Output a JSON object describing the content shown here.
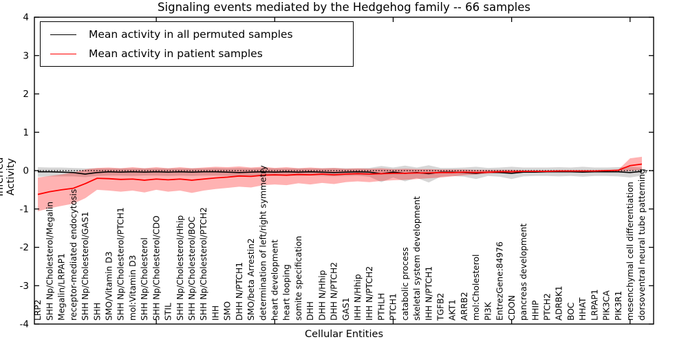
{
  "figure": {
    "title": "Signaling events mediated by the Hedgehog family -- 66 samples",
    "xlabel": "Cellular Entities",
    "ylabel": "Inferred Activity"
  },
  "legend": {
    "items": [
      {
        "label": "Mean activity in all permuted samples",
        "color": "#000000"
      },
      {
        "label": "Mean activity in patient samples",
        "color": "#ff0000"
      }
    ]
  },
  "chart_data": {
    "type": "line",
    "title": "Signaling events mediated by the Hedgehog family -- 66 samples",
    "xlabel": "Cellular Entities",
    "ylabel": "Inferred Activity",
    "ylim": [
      -4,
      4
    ],
    "yticks": [
      -4,
      -3,
      -2,
      -1,
      0,
      1,
      2,
      3,
      4
    ],
    "x_major_tick_indices": [
      10,
      20,
      30,
      40,
      50
    ],
    "grid": false,
    "legend_position": "upper left",
    "zero_line": {
      "style": "dotted",
      "color": "#000000",
      "y": 0
    },
    "categories": [
      "LRP2",
      "SHH Np/Cholesterol/Megalin",
      "Megalin/LRPAP1",
      "receptor-mediated endocytosis",
      "SHH Np/Cholesterol/GAS1",
      "SHH",
      "SMO/Vitamin D3",
      "SHH Np/Cholesterol/PTCH1",
      "mol:Vitamin D3",
      "SHH Np/Cholesterol",
      "SHH Np/Cholesterol/CDO",
      "STIL",
      "SHH Np/Cholesterol/Hhip",
      "SHH Np/Cholesterol/BOC",
      "SHH Np/Cholesterol/PTCH2",
      "IHH",
      "SMO",
      "DHH N/PTCH1",
      "SMO/beta Arrestin2",
      "determination of left/right symmetry",
      "heart development",
      "heart looping",
      "somite specification",
      "DHH",
      "DHH N/Hhip",
      "DHH N/PTCH2",
      "GAS1",
      "IHH N/Hhip",
      "IHH N/PTCH2",
      "PTHLH",
      "PTCH1",
      "catabolic process",
      "skeletal system development",
      "IHH N/PTCH1",
      "TGFB2",
      "AKT1",
      "ARRB2",
      "mol:Cholesterol",
      "PI3K",
      "EntrezGene:84976",
      "CDON",
      "pancreas development",
      "HHIP",
      "PTCH2",
      "ADRBK1",
      "BOC",
      "HHAT",
      "LRPAP1",
      "PIK3CA",
      "PIK3R1",
      "mesenchymal cell differentiation",
      "dorsoventral neural tube patterning"
    ],
    "series": [
      {
        "name": "Mean activity in all permuted samples",
        "color": "#000000",
        "line_width": 1.6,
        "values": [
          -0.03,
          -0.03,
          -0.04,
          -0.05,
          -0.09,
          -0.05,
          -0.03,
          -0.04,
          -0.03,
          -0.04,
          -0.03,
          -0.04,
          -0.03,
          -0.04,
          -0.03,
          -0.03,
          -0.04,
          -0.05,
          -0.04,
          -0.03,
          -0.04,
          -0.03,
          -0.04,
          -0.03,
          -0.04,
          -0.05,
          -0.04,
          -0.03,
          -0.04,
          -0.08,
          -0.04,
          -0.07,
          -0.05,
          -0.08,
          -0.04,
          -0.04,
          -0.05,
          -0.07,
          -0.04,
          -0.05,
          -0.07,
          -0.04,
          -0.04,
          -0.03,
          -0.03,
          -0.03,
          -0.04,
          -0.03,
          -0.03,
          -0.03,
          -0.05,
          -0.02
        ],
        "band": {
          "fill": "rgba(0,0,0,0.16)",
          "upper": [
            0.09,
            0.08,
            0.08,
            0.07,
            0.06,
            0.06,
            0.06,
            0.06,
            0.06,
            0.06,
            0.06,
            0.06,
            0.06,
            0.06,
            0.06,
            0.07,
            0.06,
            0.07,
            0.06,
            0.07,
            0.06,
            0.06,
            0.06,
            0.06,
            0.06,
            0.07,
            0.06,
            0.06,
            0.07,
            0.12,
            0.08,
            0.13,
            0.08,
            0.14,
            0.07,
            0.07,
            0.08,
            0.1,
            0.07,
            0.08,
            0.1,
            0.08,
            0.08,
            0.08,
            0.09,
            0.08,
            0.1,
            0.08,
            0.08,
            0.09,
            0.1,
            0.08
          ],
          "lower": [
            -0.16,
            -0.15,
            -0.15,
            -0.15,
            -0.17,
            -0.14,
            -0.13,
            -0.13,
            -0.14,
            -0.13,
            -0.13,
            -0.14,
            -0.13,
            -0.14,
            -0.13,
            -0.13,
            -0.14,
            -0.15,
            -0.14,
            -0.13,
            -0.14,
            -0.13,
            -0.14,
            -0.13,
            -0.14,
            -0.15,
            -0.14,
            -0.13,
            -0.16,
            -0.3,
            -0.18,
            -0.28,
            -0.19,
            -0.31,
            -0.16,
            -0.14,
            -0.16,
            -0.22,
            -0.14,
            -0.16,
            -0.22,
            -0.15,
            -0.14,
            -0.14,
            -0.15,
            -0.14,
            -0.16,
            -0.14,
            -0.14,
            -0.15,
            -0.18,
            -0.13
          ]
        }
      },
      {
        "name": "Mean activity in patient samples",
        "color": "#ff0000",
        "line_width": 1.8,
        "values": [
          -0.62,
          -0.55,
          -0.5,
          -0.46,
          -0.34,
          -0.2,
          -0.21,
          -0.23,
          -0.22,
          -0.25,
          -0.22,
          -0.24,
          -0.22,
          -0.25,
          -0.22,
          -0.19,
          -0.17,
          -0.14,
          -0.15,
          -0.12,
          -0.11,
          -0.12,
          -0.1,
          -0.11,
          -0.09,
          -0.11,
          -0.09,
          -0.08,
          -0.09,
          -0.08,
          -0.07,
          -0.07,
          -0.06,
          -0.06,
          -0.05,
          -0.05,
          -0.04,
          -0.05,
          -0.04,
          -0.03,
          -0.03,
          -0.02,
          -0.02,
          -0.02,
          -0.01,
          -0.01,
          -0.01,
          -0.01,
          0.0,
          0.01,
          0.13,
          0.17
        ],
        "band": {
          "fill": "rgba(255,0,0,0.30)",
          "upper": [
            -0.18,
            -0.14,
            -0.1,
            -0.05,
            0.03,
            0.07,
            0.08,
            0.06,
            0.09,
            0.06,
            0.09,
            0.06,
            0.09,
            0.06,
            0.08,
            0.1,
            0.09,
            0.11,
            0.08,
            0.1,
            0.07,
            0.09,
            0.06,
            0.08,
            0.06,
            0.07,
            0.05,
            0.06,
            0.05,
            0.06,
            0.04,
            0.05,
            0.04,
            0.04,
            0.03,
            0.03,
            0.03,
            0.02,
            0.02,
            0.02,
            0.02,
            0.01,
            0.01,
            0.01,
            0.01,
            0.01,
            0.01,
            0.01,
            0.02,
            0.02,
            0.32,
            0.36
          ],
          "lower": [
            -1.06,
            -0.98,
            -0.92,
            -0.86,
            -0.72,
            -0.5,
            -0.52,
            -0.55,
            -0.52,
            -0.57,
            -0.5,
            -0.55,
            -0.52,
            -0.58,
            -0.52,
            -0.48,
            -0.45,
            -0.42,
            -0.44,
            -0.38,
            -0.36,
            -0.38,
            -0.33,
            -0.36,
            -0.32,
            -0.35,
            -0.3,
            -0.28,
            -0.3,
            -0.27,
            -0.25,
            -0.24,
            -0.22,
            -0.2,
            -0.18,
            -0.15,
            -0.12,
            -0.1,
            -0.08,
            -0.06,
            -0.05,
            -0.05,
            -0.04,
            -0.04,
            -0.03,
            -0.03,
            -0.03,
            -0.03,
            -0.02,
            -0.02,
            -0.01,
            0.02
          ]
        }
      }
    ]
  }
}
